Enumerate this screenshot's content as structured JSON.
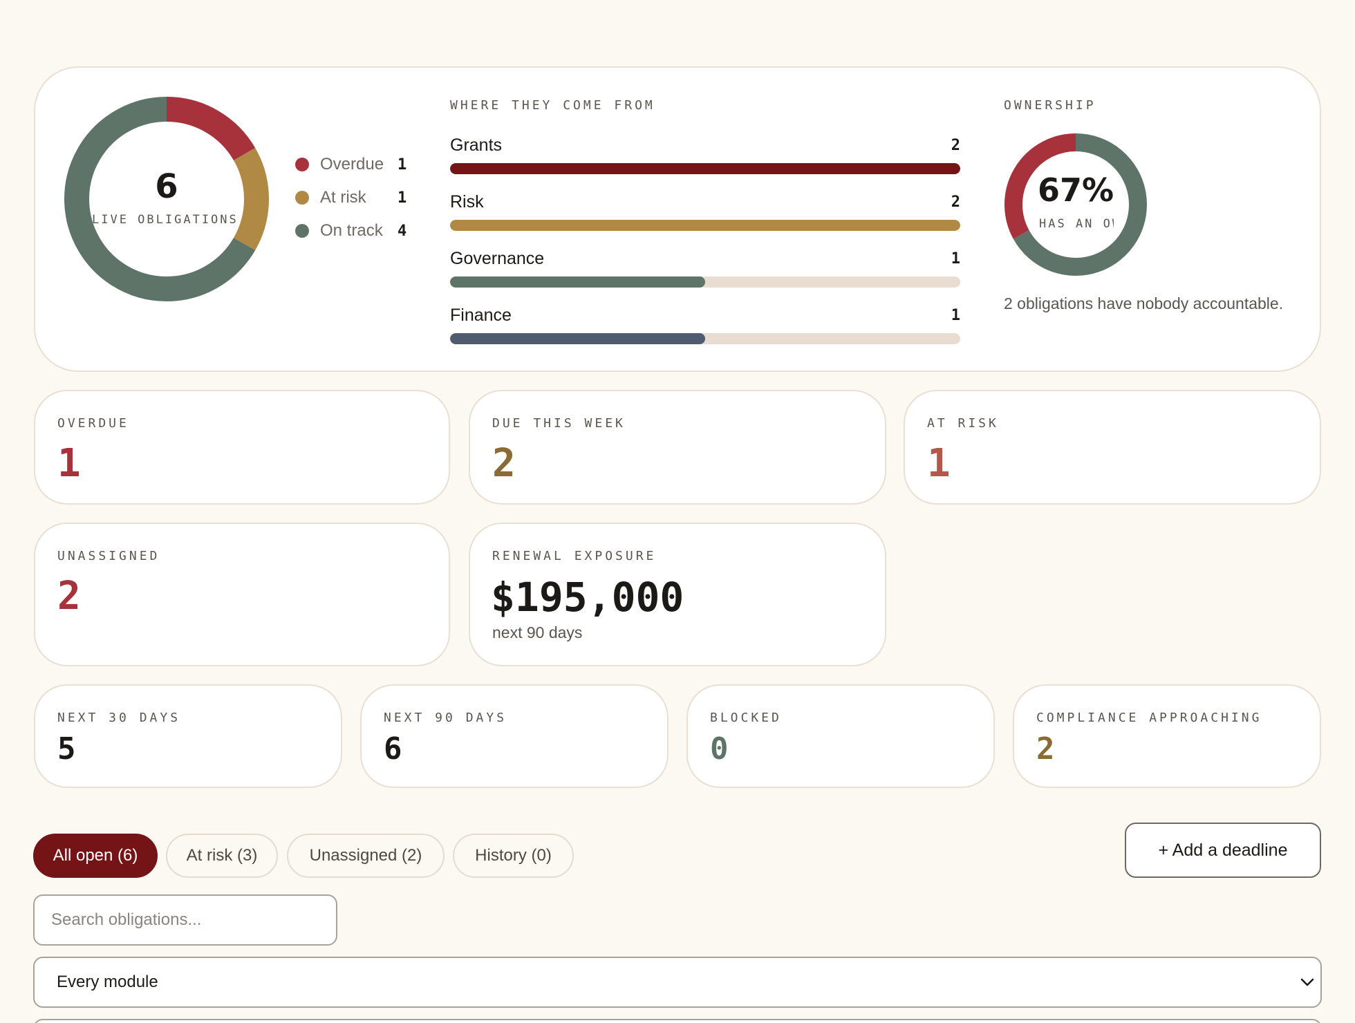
{
  "summary": {
    "live_total": "6",
    "live_label": "LIVE OBLIGATIONS",
    "status_segments": [
      {
        "label": "Overdue",
        "count": 1,
        "color": "#a8323c"
      },
      {
        "label": "At risk",
        "count": 1,
        "color": "#b08a44"
      },
      {
        "label": "On track",
        "count": 4,
        "color": "#5f7468"
      }
    ],
    "sources_caption": "WHERE THEY COME FROM",
    "sources": [
      {
        "name": "Grants",
        "count": 2,
        "color": "#741417"
      },
      {
        "name": "Risk",
        "count": 2,
        "color": "#b08a44"
      },
      {
        "name": "Governance",
        "count": 1,
        "color": "#5f7468"
      },
      {
        "name": "Finance",
        "count": 1,
        "color": "#4f5c70"
      }
    ],
    "ownership_caption": "OWNERSHIP",
    "ownership_percent": "67%",
    "ownership_fraction": 0.67,
    "ownership_label": "HAS AN OWNER",
    "ownership_note": "2 obligations have nobody accountable.",
    "colors": {
      "owned": "#5f7468",
      "unowned": "#a8323c"
    }
  },
  "stats": {
    "overdue": {
      "label": "OVERDUE",
      "value": "1",
      "color": "#a8323c"
    },
    "due_week": {
      "label": "DUE THIS WEEK",
      "value": "2",
      "color": "#8a6a35"
    },
    "at_risk": {
      "label": "AT RISK",
      "value": "1",
      "color": "#b5574a"
    },
    "unassigned": {
      "label": "UNASSIGNED",
      "value": "2",
      "color": "#a8323c"
    },
    "renewal": {
      "label": "RENEWAL EXPOSURE",
      "value": "$195,000",
      "sub": "next 90 days",
      "color": "#1c1a17"
    },
    "next30": {
      "label": "NEXT 30 DAYS",
      "value": "5",
      "color": "#1c1a17"
    },
    "next90": {
      "label": "NEXT 90 DAYS",
      "value": "6",
      "color": "#1c1a17"
    },
    "blocked": {
      "label": "BLOCKED",
      "value": "0",
      "color": "#5f7468"
    },
    "compliance": {
      "label": "COMPLIANCE APPROACHING",
      "value": "2",
      "color": "#8a6a35"
    }
  },
  "filters": {
    "tabs": [
      {
        "label": "All open (6)",
        "active": true
      },
      {
        "label": "At risk (3)",
        "active": false
      },
      {
        "label": "Unassigned (2)",
        "active": false
      },
      {
        "label": "History (0)",
        "active": false
      }
    ],
    "add_label": "+ Add a deadline",
    "search_placeholder": "Search obligations...",
    "module_selected": "Every module"
  }
}
